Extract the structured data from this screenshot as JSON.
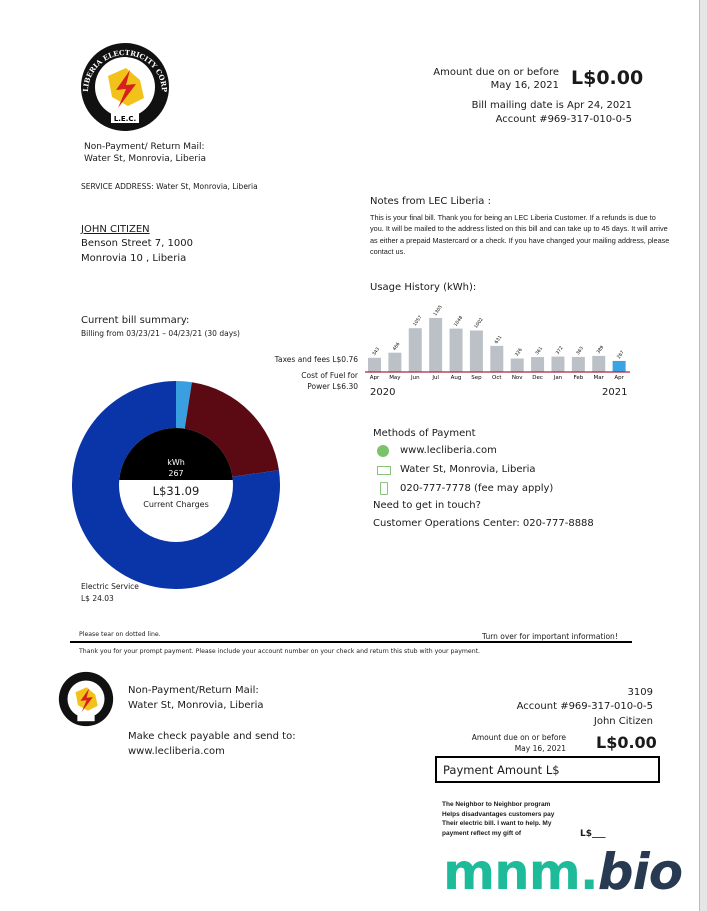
{
  "company": {
    "logo_text": "LIBERIA ELECTRICITY CORPORATION",
    "logo_abbr": "L.E.C."
  },
  "header": {
    "amount_due_label": "Amount due on or before",
    "due_date": "May 16, 2021",
    "amount_due": "L$0.00",
    "mailing_date": "Bill mailing date is Apr 24, 2021",
    "account": "Account #969-317-010-0-5"
  },
  "return_mail": {
    "label": "Non-Payment/ Return Mail:",
    "address": "Water St, Monrovia, Liberia"
  },
  "service_address": "SERVICE ADDRESS: Water St, Monrovia, Liberia",
  "customer": {
    "name": "JOHN CITIZEN",
    "line1": "Benson Street 7, 1000",
    "line2": "Monrovia 10 , Liberia"
  },
  "notes": {
    "title": "Notes from LEC Liberia :",
    "text": "This is your final bill. Thank you for being an LEC Liberia Customer. If a refunds is due to you. It will be mailed to the address listed on this bill and can take up to 45 days. It will arrive as either a prepaid Mastercard or a check. If you have changed your mailing address, please contact us."
  },
  "summary": {
    "title": "Current bill summary:",
    "period": "Billing from 03/23/21 – 04/23/21 (30 days)",
    "taxes_label": "Taxes and fees L$0.76",
    "fuel_label_1": "Cost of Fuel for",
    "fuel_label_2": "Power L$6.30",
    "electric_label_1": "Electric Service",
    "electric_label_2": "L$ 24.03",
    "kwh_label": "kWh",
    "kwh_value": "267",
    "total": "L$31.09",
    "total_label": "Current Charges"
  },
  "chart_data": {
    "type": "pie",
    "title": "",
    "slices": [
      {
        "name": "Taxes and fees",
        "value": 0.76,
        "color": "#3a9fe0"
      },
      {
        "name": "Cost of Fuel for Power",
        "value": 6.3,
        "color": "#5b0a14"
      },
      {
        "name": "Electric Service",
        "value": 24.03,
        "color": "#0a35a8"
      }
    ]
  },
  "usage": {
    "title": "Usage History (kWh):",
    "type": "bar",
    "categories": [
      "Apr",
      "May",
      "Jun",
      "Jul",
      "Aug",
      "Sep",
      "Oct",
      "Nov",
      "Dec",
      "Jan",
      "Feb",
      "Mar",
      "Apr"
    ],
    "values": [
      343,
      466,
      1057,
      1305,
      1048,
      1002,
      631,
      326,
      361,
      372,
      363,
      389,
      267
    ],
    "start_year": "2020",
    "end_year": "2021",
    "bar_color": "#bcc1c7",
    "current_color": "#3aa3e3",
    "baseline_color": "#b02040"
  },
  "payment": {
    "title": "Methods of Payment",
    "items": [
      {
        "icon": "globe-icon",
        "text": "www.lecliberia.com"
      },
      {
        "icon": "mail-icon",
        "text": "Water St, Monrovia, Liberia"
      },
      {
        "icon": "phone-icon",
        "text": "020-777-7778 (fee may apply)"
      }
    ],
    "touch": "Need to get in touch?",
    "ops": "Customer Operations Center: 020-777-8888"
  },
  "tear": {
    "left": "Please tear on dotted line.",
    "right": "Turn over for important information!",
    "thanks": "Thank you for your prompt payment. Please include your account number on your check and return this stub with your payment."
  },
  "stub": {
    "return_label": "Non-Payment/Return Mail:",
    "return_address": "Water St, Monrovia, Liberia",
    "payable_label": "Make check payable and send to:",
    "payable_to": "www.lecliberia.com",
    "code": "3109",
    "account": "Account #969-317-010-0-5",
    "name": "John Citizen",
    "due_label": "Amount due on or before",
    "due_date": "May 16, 2021",
    "amount": "L$0.00",
    "payment_amount_label": "Payment Amount L$",
    "neighbor": [
      "The Neighbor to Neighbor program",
      "Helps disadvantages customers pay",
      "Their electric bill. I want to help. My",
      "payment reflect my gift of"
    ],
    "gift_currency": "L$___"
  },
  "watermark": {
    "part1": "mnm.",
    "part2": "bio"
  }
}
